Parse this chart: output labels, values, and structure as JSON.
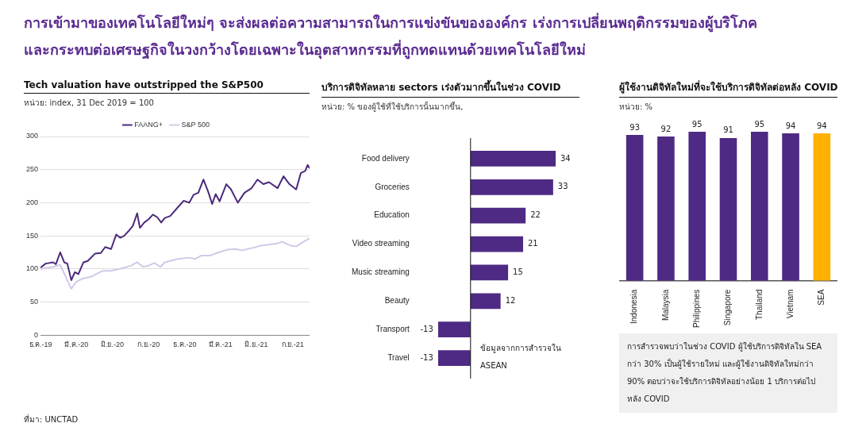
{
  "chart_data": [
    {
      "type": "line",
      "title": "Tech valuation have outstripped the S&P500",
      "subtitle": "หน่วย: index, 31 Dec 2019 = 100",
      "annotations": [
        "การเข้ามาของเทคโนโลยีใหม่ๆ จะส่งผลต่อความสามารถในการแข่งขันขององค์กร เร่งการเปลี่ยนพฤติกรรมของผู้บริโภค",
        "และกระทบต่อเศรษฐกิจในวงกว้างโดยเฉพาะในอุตสาหกรรมที่ถูกทดแทนด้วยเทคโนโลยีใหม่",
        "ที่มา: UNCTAD"
      ],
      "xlim": [
        "2019-12-31",
        "2021-11-12"
      ],
      "xticks": [
        {
          "value": "2019-12-31",
          "label": "ธ.ค.-19"
        },
        {
          "value": "2020-03-31",
          "label": "มี.ค.-20"
        },
        {
          "value": "2020-06-30",
          "label": "มิ.ย.-20"
        },
        {
          "value": "2020-09-30",
          "label": "ก.ย.-20"
        },
        {
          "value": "2020-12-31",
          "label": "ธ.ค.-20"
        },
        {
          "value": "2021-03-31",
          "label": "มี.ค.-21"
        },
        {
          "value": "2021-06-30",
          "label": "มิ.ย.-21"
        },
        {
          "value": "2021-09-30",
          "label": "ก.ย.-21"
        }
      ],
      "ylim": [
        0,
        300
      ],
      "yticks": [
        0,
        50,
        100,
        150,
        200,
        250,
        300
      ],
      "grid": "y",
      "legend": "top",
      "marker": "none",
      "line_style": "solid",
      "series": [
        {
          "name": "FAANG+",
          "color": "#4b2a7b",
          "x": [
            "2019-12-31",
            "2020-01-13",
            "2020-02-01",
            "2020-02-08",
            "2020-02-19",
            "2020-02-29",
            "2020-03-08",
            "2020-03-18",
            "2020-03-27",
            "2020-04-05",
            "2020-04-18",
            "2020-04-29",
            "2020-05-17",
            "2020-06-01",
            "2020-06-12",
            "2020-06-27",
            "2020-07-10",
            "2020-07-20",
            "2020-07-30",
            "2020-08-10",
            "2020-08-21",
            "2020-09-01",
            "2020-09-08",
            "2020-09-19",
            "2020-09-30",
            "2020-10-11",
            "2020-10-22",
            "2020-11-01",
            "2020-11-10",
            "2020-11-24",
            "2020-12-13",
            "2020-12-28",
            "2021-01-11",
            "2021-01-22",
            "2021-02-03",
            "2021-02-16",
            "2021-03-01",
            "2021-03-10",
            "2021-03-19",
            "2021-03-29",
            "2021-04-15",
            "2021-04-27",
            "2021-05-14",
            "2021-05-31",
            "2021-06-18",
            "2021-07-03",
            "2021-07-18",
            "2021-08-01",
            "2021-08-23",
            "2021-09-07",
            "2021-09-22",
            "2021-10-09",
            "2021-10-21",
            "2021-11-01",
            "2021-11-07",
            "2021-11-12"
          ],
          "values": [
            102,
            108,
            110,
            107,
            125,
            110,
            108,
            83,
            95,
            92,
            110,
            112,
            123,
            124,
            133,
            130,
            152,
            147,
            150,
            157,
            165,
            184,
            162,
            170,
            175,
            182,
            178,
            170,
            177,
            180,
            193,
            203,
            200,
            212,
            215,
            235,
            215,
            198,
            213,
            202,
            228,
            220,
            200,
            215,
            222,
            235,
            228,
            231,
            222,
            240,
            228,
            220,
            245,
            248,
            257,
            252
          ]
        },
        {
          "name": "S&P 500",
          "color": "#d3c8e6",
          "x": [
            "2019-12-31",
            "2020-02-01",
            "2020-02-19",
            "2020-03-01",
            "2020-03-18",
            "2020-03-30",
            "2020-04-14",
            "2020-05-06",
            "2020-06-05",
            "2020-06-27",
            "2020-07-19",
            "2020-08-17",
            "2020-09-01",
            "2020-09-16",
            "2020-09-30",
            "2020-10-15",
            "2020-10-30",
            "2020-11-10",
            "2020-12-13",
            "2021-01-11",
            "2021-01-26",
            "2021-02-10",
            "2021-03-04",
            "2021-03-26",
            "2021-04-17",
            "2021-05-09",
            "2021-05-24",
            "2021-06-22",
            "2021-07-10",
            "2021-08-20",
            "2021-09-03",
            "2021-09-26",
            "2021-10-10",
            "2021-10-25",
            "2021-11-12"
          ],
          "values": [
            100,
            103,
            106,
            92,
            70,
            80,
            85,
            88,
            97,
            97,
            100,
            105,
            110,
            103,
            105,
            109,
            103,
            110,
            115,
            117,
            115,
            120,
            120,
            125,
            129,
            130,
            128,
            132,
            135,
            138,
            141,
            135,
            134,
            140,
            146
          ]
        }
      ]
    },
    {
      "type": "bar",
      "orientation": "horizontal",
      "title": "บริการดิจิทัลหลาย sectors เร่งตัวมากขึ้นในช่วง COVID",
      "subtitle": "หน่วย: % ของผู้ใช้ที่ใช้บริการนั้นมากขึ้น,",
      "annotations": [
        "ข้อมูลจากการสำรวจใน ASEAN"
      ],
      "categories": [
        "Food delivery",
        "Groceries",
        "Education",
        "Video streaming",
        "Music streaming",
        "Beauty",
        "Transport",
        "Travel"
      ],
      "values": [
        34,
        33,
        22,
        21,
        15,
        12,
        -13,
        -13
      ],
      "color": "#4e2a84",
      "data_labels": true,
      "legend": false,
      "grid": false
    },
    {
      "type": "bar",
      "title": "ผู้ใช้งานดิจิทัลใหม่ที่จะใช้บริการดิจิทัลต่อหลัง COVID",
      "subtitle": "หน่วย: %",
      "annotations": [
        "การสำรวจพบว่าในช่วง COVID ผู้ใช้บริการดิจิทัลใน SEA กว่า 30% เป็นผู้ใช้รายใหม่ และผู้ใช้งานดิจิทัลใหม่กว่า 90% ตอบว่าจะใช้บริการดิจิทัลอย่างน้อย 1 บริการต่อไปหลัง COVID"
      ],
      "categories": [
        "Indonesia",
        "Malaysia",
        "Philippines",
        "Singapore",
        "Thailand",
        "Vietnam",
        "SEA"
      ],
      "values": [
        93,
        92,
        95,
        91,
        95,
        94,
        94
      ],
      "colors": [
        "#4e2a84",
        "#4e2a84",
        "#4e2a84",
        "#4e2a84",
        "#4e2a84",
        "#4e2a84",
        "#ffb000"
      ],
      "data_labels": true,
      "legend": false,
      "grid": false
    }
  ]
}
